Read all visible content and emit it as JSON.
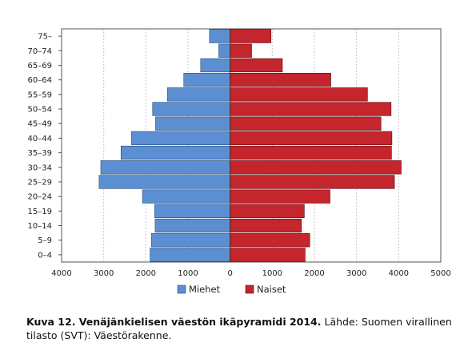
{
  "chart_data": {
    "type": "bar",
    "orientation": "horizontal",
    "categories": [
      "0–4",
      "5–9",
      "10–14",
      "15–19",
      "20–24",
      "25–29",
      "30–34",
      "35–39",
      "40–44",
      "45–49",
      "50–54",
      "55–59",
      "60–64",
      "65–69",
      "70–74",
      "75–"
    ],
    "series": [
      {
        "name": "Miehet",
        "color": "#5b8fd2",
        "side": "left",
        "values": [
          1900,
          1870,
          1780,
          1790,
          2080,
          3110,
          3070,
          2590,
          2340,
          1770,
          1840,
          1490,
          1100,
          700,
          270,
          490
        ]
      },
      {
        "name": "Naiset",
        "color": "#c5252c",
        "side": "right",
        "values": [
          1780,
          1890,
          1690,
          1760,
          2370,
          3900,
          4060,
          3830,
          3840,
          3580,
          3820,
          3260,
          2390,
          1240,
          510,
          970
        ]
      }
    ],
    "x_ticks": [
      "4000",
      "3000",
      "2000",
      "1000",
      "0",
      "1000",
      "2000",
      "3000",
      "4000",
      "5000"
    ],
    "xlim": [
      -4000,
      5000
    ],
    "grid": "vertical dashed",
    "legend": "bottom"
  },
  "caption": {
    "bold": "Kuva 12. Venäjänkielisen väestön ikäpyramidi 2014.",
    "rest": " Lähde: Suomen virallinen tilasto (SVT): Väestörakenne."
  }
}
